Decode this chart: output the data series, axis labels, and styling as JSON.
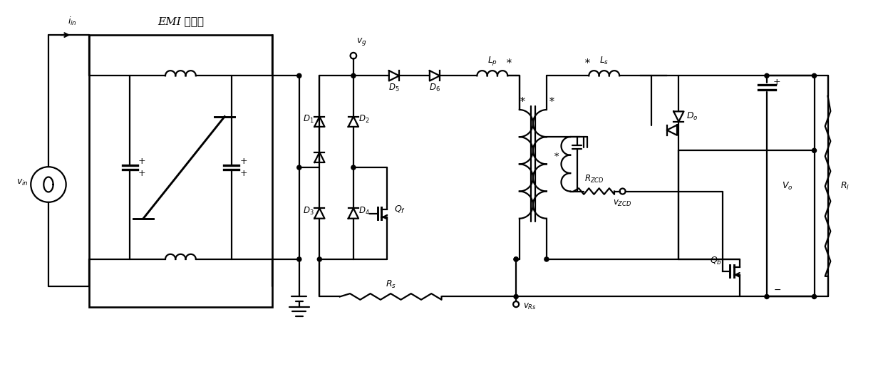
{
  "bg_color": "#ffffff",
  "line_color": "#000000",
  "lw": 1.6,
  "fig_w": 12.39,
  "fig_h": 5.18,
  "xmax": 130,
  "ymax": 54
}
